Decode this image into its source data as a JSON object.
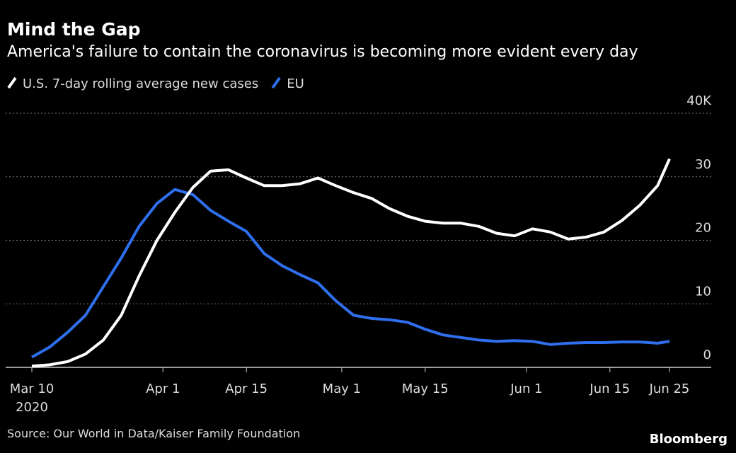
{
  "chart_data": {
    "type": "line",
    "title": "Mind the Gap",
    "subtitle": "America's failure to contain the coronavirus is becoming more evident every day",
    "source": "Source: Our World in Data/Kaiser Family Foundation",
    "brand": "Bloomberg",
    "x": [
      "2020-03-10",
      "2020-03-13",
      "2020-03-16",
      "2020-03-19",
      "2020-03-22",
      "2020-03-25",
      "2020-03-28",
      "2020-03-31",
      "2020-04-03",
      "2020-04-06",
      "2020-04-09",
      "2020-04-12",
      "2020-04-15",
      "2020-04-18",
      "2020-04-21",
      "2020-04-24",
      "2020-04-27",
      "2020-04-30",
      "2020-05-03",
      "2020-05-06",
      "2020-05-09",
      "2020-05-12",
      "2020-05-15",
      "2020-05-18",
      "2020-05-21",
      "2020-05-24",
      "2020-05-27",
      "2020-05-30",
      "2020-06-02",
      "2020-06-05",
      "2020-06-08",
      "2020-06-11",
      "2020-06-14",
      "2020-06-17",
      "2020-06-20",
      "2020-06-23",
      "2020-06-25"
    ],
    "series": [
      {
        "name": "U.S. 7-day rolling average new cases",
        "color": "#ffffff",
        "values": [
          0.2,
          0.4,
          0.9,
          2.1,
          4.3,
          8.2,
          14.4,
          20,
          24.4,
          28.3,
          30.9,
          31.1,
          29.8,
          28.6,
          28.6,
          28.9,
          29.8,
          28.6,
          27.5,
          26.6,
          25,
          23.8,
          23,
          22.7,
          22.7,
          22.2,
          21.1,
          20.7,
          21.8,
          21.3,
          20.2,
          20.5,
          21.3,
          23.1,
          25.5,
          28.6,
          32.8
        ]
      },
      {
        "name": "EU",
        "color": "#2f6fed",
        "values": [
          1.6,
          3.2,
          5.5,
          8.2,
          12.7,
          17.2,
          22.2,
          25.8,
          28,
          27.2,
          24.7,
          23,
          21.4,
          17.9,
          16,
          14.6,
          13.3,
          10.5,
          8.2,
          7.7,
          7.5,
          7.1,
          6,
          5.1,
          4.7,
          4.3,
          4.1,
          4.2,
          4.1,
          3.6,
          3.8,
          3.9,
          3.9,
          4,
          4,
          3.8,
          4.1
        ]
      }
    ],
    "xlim": [
      "2020-03-10",
      "2020-06-25"
    ],
    "xticks": [
      {
        "value": "2020-03-10",
        "label": "Mar 10"
      },
      {
        "value": "2020-04-01",
        "label": "Apr 1"
      },
      {
        "value": "2020-04-15",
        "label": "Apr 15"
      },
      {
        "value": "2020-05-01",
        "label": "May 1"
      },
      {
        "value": "2020-05-15",
        "label": "May 15"
      },
      {
        "value": "2020-06-01",
        "label": "Jun 1"
      },
      {
        "value": "2020-06-15",
        "label": "Jun 15"
      },
      {
        "value": "2020-06-25",
        "label": "Jun 25"
      }
    ],
    "xtick_year": "2020",
    "ylim": [
      0,
      40
    ],
    "yticks": [
      0,
      10,
      20,
      30,
      {
        "value": 40,
        "label": "40K"
      }
    ],
    "grid": true
  }
}
